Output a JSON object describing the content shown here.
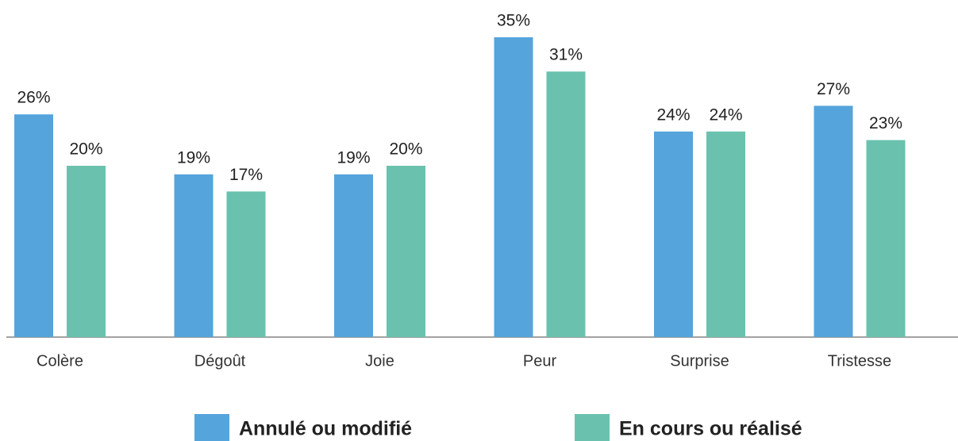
{
  "chart_data": {
    "type": "bar",
    "categories": [
      "Colère",
      "Dégoût",
      "Joie",
      "Peur",
      "Surprise",
      "Tristesse"
    ],
    "series": [
      {
        "name": "Annulé ou modifié",
        "color": "#55a4dc",
        "values": [
          26,
          19,
          19,
          35,
          24,
          27
        ],
        "value_labels": [
          "26%",
          "19%",
          "19%",
          "35%",
          "24%",
          "27%"
        ]
      },
      {
        "name": "En cours ou réalisé",
        "color": "#6ac2ae",
        "values": [
          20,
          17,
          20,
          31,
          24,
          23
        ],
        "value_labels": [
          "20%",
          "17%",
          "20%",
          "31%",
          "24%",
          "23%"
        ]
      }
    ],
    "legend": "bottom"
  }
}
